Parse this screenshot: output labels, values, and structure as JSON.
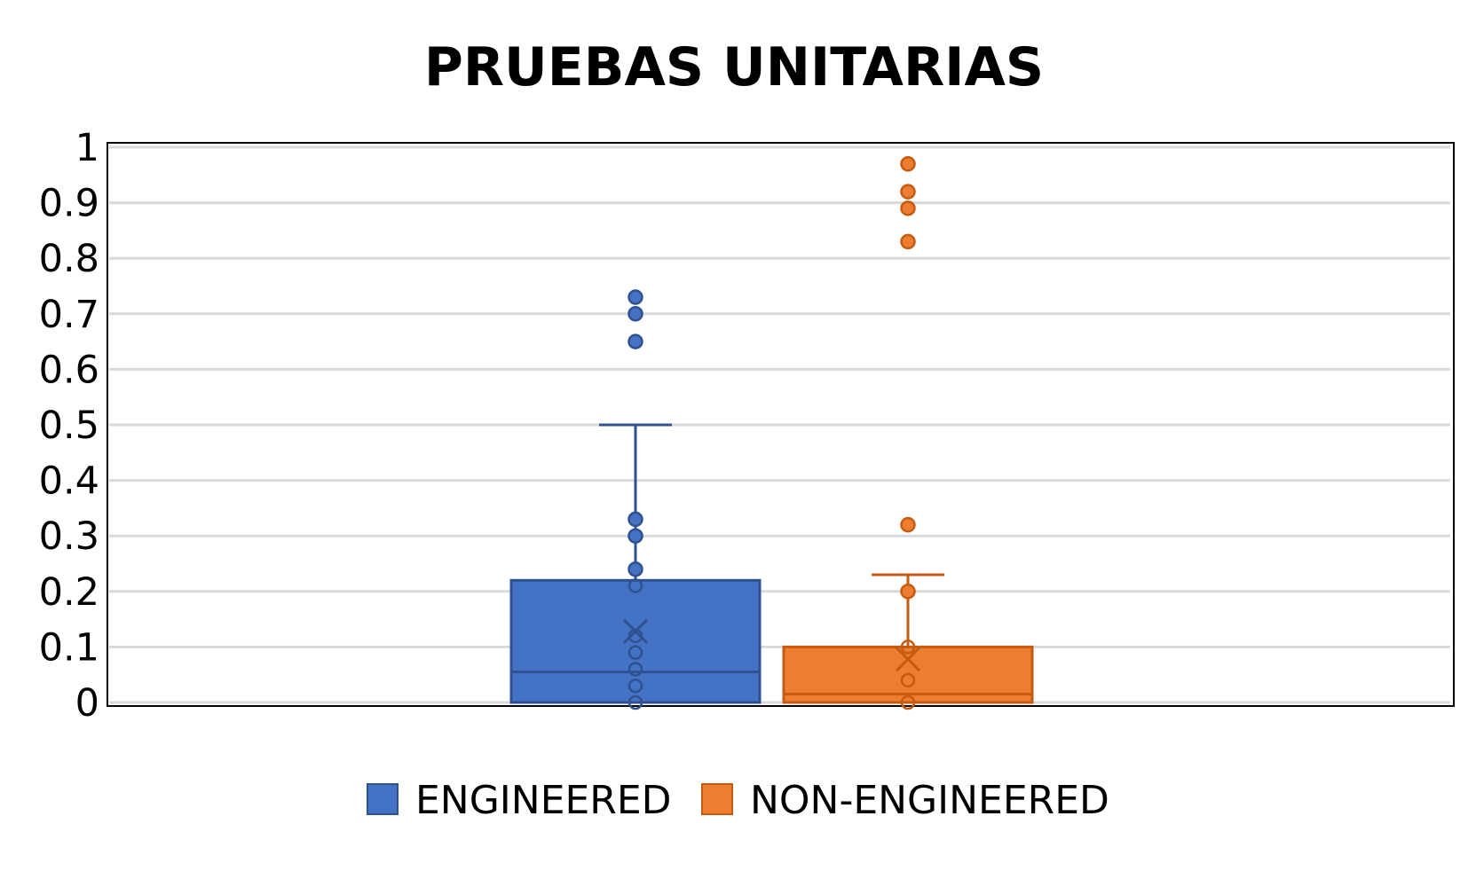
{
  "chart_data": {
    "type": "box",
    "title": "PRUEBAS UNITARIAS",
    "xlabel": "",
    "ylabel": "",
    "ylim": [
      0,
      1
    ],
    "yticks": [
      0,
      0.1,
      0.2,
      0.3,
      0.4,
      0.5,
      0.6,
      0.7,
      0.8,
      0.9,
      1
    ],
    "ytick_labels": [
      "0",
      "0.1",
      "0.2",
      "0.3",
      "0.4",
      "0.5",
      "0.6",
      "0.7",
      "0.8",
      "0.9",
      "1"
    ],
    "grid": true,
    "legend_position": "bottom",
    "series": [
      {
        "name": "ENGINEERED",
        "color": "#4472c4",
        "stroke": "#2f528f",
        "q1": 0,
        "median": 0.055,
        "q3": 0.22,
        "whisker_low": 0,
        "whisker_high": 0.5,
        "mean": 0.128,
        "inner_points": [
          0,
          0.03,
          0.06,
          0.09,
          0.12,
          0.21
        ],
        "points_above_box": [
          0.24,
          0.3,
          0.33
        ],
        "outliers": [
          0.65,
          0.7,
          0.73
        ]
      },
      {
        "name": "NON-ENGINEERED",
        "color": "#ed7d31",
        "stroke": "#c55a11",
        "q1": 0,
        "median": 0.015,
        "q3": 0.1,
        "whisker_low": 0,
        "whisker_high": 0.23,
        "mean": 0.078,
        "inner_points": [
          0,
          0.04,
          0.1
        ],
        "points_above_box": [
          0.2
        ],
        "outliers": [
          0.32,
          0.83,
          0.89,
          0.92,
          0.97
        ]
      }
    ]
  }
}
